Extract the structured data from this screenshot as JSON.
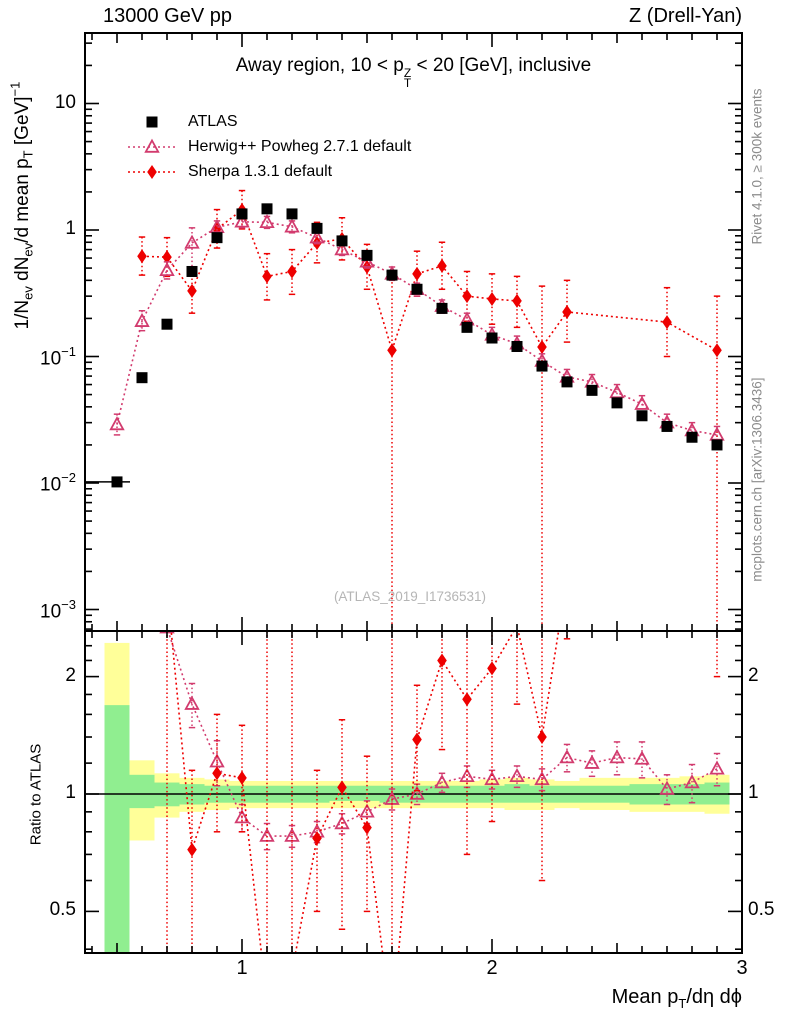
{
  "header": {
    "left": "13000 GeV pp",
    "right": "Z (Drell-Yan)"
  },
  "title": {
    "prefix": "Away region, 10 < p",
    "stack_top": "Z",
    "stack_bottom": "T",
    "suffix": " < 20 [GeV], inclusive"
  },
  "side_notes": {
    "top": "Rivet 4.1.0, ≥ 300k events",
    "bottom": "mcplots.cern.ch [arXiv:1306.3436]"
  },
  "watermark": "(ATLAS_2019_I1736531)",
  "legend": [
    {
      "label": "ATLAS",
      "marker": "square",
      "color": "#000000"
    },
    {
      "label": "Herwig++ Powheg 2.7.1 default",
      "marker": "triangle",
      "color": "#d23b6e"
    },
    {
      "label": "Sherpa 1.3.1 default",
      "marker": "diamond",
      "color": "#ee0000"
    }
  ],
  "colors": {
    "atlas": "#000000",
    "herwig": "#d23b6e",
    "sherpa": "#ee0000",
    "band_yellow": "#ffff99",
    "band_green": "#90ee90",
    "frame": "#000000"
  },
  "axes": {
    "main_y_title_parts": [
      {
        "t": "1/N"
      },
      {
        "sub": "ev"
      },
      {
        "t": " dN"
      },
      {
        "sub": "ev"
      },
      {
        "t": "/d mean p"
      },
      {
        "sub": "T"
      },
      {
        "t": " [GeV]"
      },
      {
        "sup": "−1"
      }
    ],
    "ratio_y_title": "Ratio to ATLAS",
    "x_title_parts": [
      {
        "t": "Mean p"
      },
      {
        "sub": "T"
      },
      {
        "t": "/dη dϕ"
      }
    ],
    "main_y_tick_labels": [
      {
        "v": 10,
        "base": "10",
        "exp": ""
      },
      {
        "v": 1,
        "base": "1",
        "exp": ""
      },
      {
        "v": 0.1,
        "base": "10",
        "exp": "−1"
      },
      {
        "v": 0.01,
        "base": "10",
        "exp": "−2"
      },
      {
        "v": 0.001,
        "base": "10",
        "exp": "−3"
      }
    ],
    "ratio_y_tick_labels": [
      {
        "r": 2,
        "t": "2"
      },
      {
        "r": 1,
        "t": "1"
      },
      {
        "r": 0.5,
        "t": "0.5"
      }
    ],
    "x_tick_labels": [
      {
        "v": 1,
        "t": "1"
      },
      {
        "v": 2,
        "t": "2"
      },
      {
        "v": 3,
        "t": "3"
      }
    ]
  },
  "chart_data": [
    {
      "type": "scatter",
      "panel": "main",
      "x_axis": {
        "range": [
          0.372,
          3.0
        ],
        "scale": "linear"
      },
      "y_axis": {
        "range": [
          0.000675,
          35.9
        ],
        "scale": "log"
      },
      "series": [
        {
          "name": "ATLAS",
          "marker": "square",
          "x": [
            0.5,
            0.6,
            0.7,
            0.8,
            0.9,
            1.0,
            1.1,
            1.2,
            1.3,
            1.4,
            1.5,
            1.6,
            1.7,
            1.8,
            1.9,
            2.0,
            2.1,
            2.2,
            2.3,
            2.4,
            2.5,
            2.6,
            2.7,
            2.8,
            2.9
          ],
          "y": [
            0.0102,
            0.068,
            0.18,
            0.47,
            0.87,
            1.34,
            1.47,
            1.34,
            1.03,
            0.82,
            0.63,
            0.44,
            0.34,
            0.24,
            0.17,
            0.14,
            0.12,
            0.084,
            0.063,
            0.054,
            0.043,
            0.034,
            0.028,
            0.023,
            0.02
          ]
        },
        {
          "name": "Herwig++ Powheg 2.7.1 default",
          "marker": "triangle",
          "x": [
            0.5,
            0.6,
            0.7,
            0.8,
            0.9,
            1.0,
            1.1,
            1.2,
            1.3,
            1.4,
            1.5,
            1.6,
            1.7,
            1.8,
            1.9,
            2.0,
            2.1,
            2.2,
            2.3,
            2.4,
            2.5,
            2.6,
            2.7,
            2.8,
            2.9
          ],
          "y": [
            0.029,
            0.19,
            0.48,
            0.79,
            1.05,
            1.16,
            1.15,
            1.06,
            0.87,
            0.7,
            0.56,
            0.45,
            0.34,
            0.25,
            0.195,
            0.148,
            0.126,
            0.092,
            0.069,
            0.063,
            0.052,
            0.042,
            0.03,
            0.026,
            0.024
          ],
          "err_lo": [
            0.024,
            0.16,
            0.41,
            0.47,
            0.93,
            1.04,
            1.03,
            0.95,
            0.78,
            0.63,
            0.5,
            0.4,
            0.3,
            0.22,
            0.17,
            0.13,
            0.11,
            0.08,
            0.06,
            0.055,
            0.045,
            0.036,
            0.026,
            0.022,
            0.02
          ],
          "err_hi": [
            0.035,
            0.23,
            0.56,
            1.04,
            1.18,
            1.29,
            1.28,
            1.18,
            0.97,
            0.78,
            0.63,
            0.51,
            0.38,
            0.28,
            0.22,
            0.17,
            0.145,
            0.105,
            0.079,
            0.072,
            0.06,
            0.049,
            0.035,
            0.03,
            0.028
          ]
        },
        {
          "name": "Sherpa 1.3.1 default",
          "marker": "diamond",
          "x": [
            0.6,
            0.7,
            0.8,
            0.9,
            1.0,
            1.1,
            1.2,
            1.3,
            1.4,
            1.5,
            1.6,
            1.7,
            1.8,
            1.9,
            2.0,
            2.1,
            2.2,
            2.3,
            2.7,
            2.9
          ],
          "y": [
            0.62,
            0.61,
            0.33,
            1.02,
            1.44,
            0.43,
            0.47,
            0.79,
            0.85,
            0.51,
            0.112,
            0.45,
            0.52,
            0.3,
            0.285,
            0.275,
            0.119,
            0.225,
            0.187,
            0.112
          ],
          "err_lo": [
            0.44,
            0.43,
            0.22,
            0.72,
            1.02,
            0.28,
            0.31,
            0.55,
            0.58,
            0.34,
            0.0004,
            0.3,
            0.34,
            0.19,
            0.18,
            0.17,
            0.0004,
            0.13,
            0.1,
            0.0004
          ],
          "err_hi": [
            0.88,
            0.87,
            0.48,
            1.45,
            2.05,
            0.65,
            0.7,
            1.15,
            1.25,
            0.77,
            0.45,
            0.68,
            0.8,
            0.47,
            0.45,
            0.43,
            0.36,
            0.4,
            0.35,
            0.3
          ]
        }
      ]
    },
    {
      "type": "scatter",
      "panel": "ratio",
      "x_axis": {
        "range": [
          0.372,
          3.0
        ],
        "scale": "linear"
      },
      "y_axis": {
        "range": [
          0.391,
          2.62
        ],
        "scale": "log"
      },
      "reference_line": 1.0,
      "bands": {
        "bin_half_width": 0.05,
        "x": [
          0.5,
          0.6,
          0.7,
          0.8,
          0.9,
          1.0,
          1.1,
          1.2,
          1.3,
          1.4,
          1.5,
          1.6,
          1.7,
          1.8,
          1.9,
          2.0,
          2.1,
          2.2,
          2.3,
          2.4,
          2.5,
          2.6,
          2.7,
          2.8,
          2.9
        ],
        "yellow_hi": [
          2.44,
          1.22,
          1.13,
          1.1,
          1.09,
          1.08,
          1.08,
          1.08,
          1.08,
          1.08,
          1.08,
          1.08,
          1.08,
          1.08,
          1.08,
          1.09,
          1.1,
          1.09,
          1.08,
          1.1,
          1.1,
          1.1,
          1.1,
          1.11,
          1.12
        ],
        "yellow_lo": [
          0.3,
          0.76,
          0.87,
          0.9,
          0.91,
          0.92,
          0.92,
          0.92,
          0.92,
          0.92,
          0.92,
          0.92,
          0.92,
          0.92,
          0.92,
          0.92,
          0.91,
          0.91,
          0.92,
          0.91,
          0.91,
          0.9,
          0.9,
          0.9,
          0.89
        ],
        "green_hi": [
          1.69,
          1.12,
          1.07,
          1.06,
          1.05,
          1.05,
          1.05,
          1.05,
          1.05,
          1.05,
          1.05,
          1.05,
          1.05,
          1.05,
          1.05,
          1.05,
          1.06,
          1.05,
          1.05,
          1.05,
          1.05,
          1.06,
          1.06,
          1.06,
          1.07
        ],
        "green_lo": [
          0.3,
          0.92,
          0.93,
          0.94,
          0.95,
          0.95,
          0.95,
          0.95,
          0.95,
          0.96,
          0.96,
          0.95,
          0.95,
          0.95,
          0.95,
          0.95,
          0.95,
          0.95,
          0.95,
          0.95,
          0.95,
          0.94,
          0.94,
          0.94,
          0.94
        ]
      },
      "series": [
        {
          "name": "Herwig++ / ATLAS",
          "marker": "triangle",
          "x": [
            0.5,
            0.6,
            0.7,
            0.8,
            0.9,
            1.0,
            1.1,
            1.2,
            1.3,
            1.4,
            1.5,
            1.6,
            1.7,
            1.8,
            1.9,
            2.0,
            2.1,
            2.2,
            2.3,
            2.4,
            2.5,
            2.6,
            2.7,
            2.8,
            2.9
          ],
          "y": [
            2.9,
            2.8,
            2.67,
            1.7,
            1.21,
            0.87,
            0.78,
            0.78,
            0.8,
            0.84,
            0.9,
            0.97,
            1.0,
            1.07,
            1.11,
            1.09,
            1.11,
            1.09,
            1.24,
            1.2,
            1.24,
            1.23,
            1.03,
            1.07,
            1.16
          ],
          "err_lo": [
            2.9,
            2.8,
            2.67,
            1.48,
            1.05,
            0.8,
            0.72,
            0.73,
            0.75,
            0.79,
            0.84,
            0.91,
            0.94,
            1.01,
            1.04,
            1.03,
            1.04,
            1.02,
            1.14,
            1.11,
            1.12,
            1.1,
            0.94,
            0.95,
            1.05
          ],
          "err_hi": [
            2.9,
            2.8,
            2.67,
            1.92,
            1.37,
            0.94,
            0.84,
            0.83,
            0.85,
            0.89,
            0.96,
            1.03,
            1.06,
            1.13,
            1.18,
            1.15,
            1.18,
            1.16,
            1.34,
            1.29,
            1.36,
            1.36,
            1.12,
            1.19,
            1.27
          ]
        },
        {
          "name": "Sherpa / ATLAS",
          "marker": "diamond",
          "x": [
            0.6,
            0.7,
            0.8,
            0.9,
            1.0,
            1.1,
            1.2,
            1.3,
            1.4,
            1.5,
            1.6,
            1.7,
            1.8,
            1.9,
            2.0,
            2.1,
            2.2,
            2.3,
            2.7,
            2.9
          ],
          "y": [
            9.1,
            3.4,
            0.72,
            1.13,
            1.1,
            0.29,
            0.35,
            0.77,
            1.04,
            0.82,
            0.25,
            1.38,
            2.2,
            1.75,
            2.1,
            2.7,
            1.4,
            3.6,
            6.7,
            5.6
          ],
          "err_lo": [
            3.0,
            0.05,
            0.35,
            0.8,
            0.8,
            0.05,
            0.05,
            0.5,
            0.45,
            0.5,
            0.05,
            1.02,
            1.3,
            0.7,
            0.85,
            1.7,
            0.6,
            2.5,
            3.0,
            2.0
          ],
          "err_hi": [
            20,
            20,
            1.15,
            1.6,
            1.5,
            20,
            20,
            1.15,
            1.55,
            1.25,
            3.0,
            1.9,
            3.5,
            3.0,
            3.0,
            3.5,
            3.0,
            5.0,
            9.0,
            9.0
          ]
        }
      ]
    }
  ]
}
